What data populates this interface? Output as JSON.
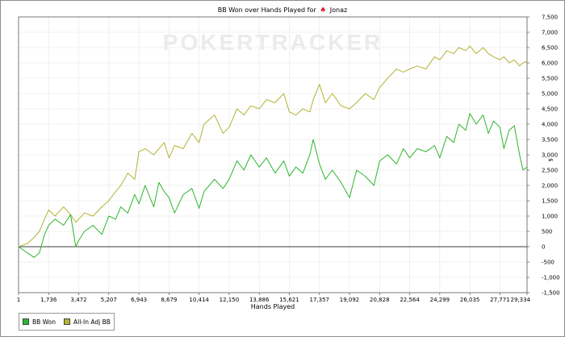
{
  "title": {
    "prefix": "BB Won over Hands Played for",
    "suit_glyph": "♠",
    "player": "Jonaz"
  },
  "watermark": "POKERTRACKER",
  "colors": {
    "bb_won": "#2db52d",
    "all_in_adj": "#b2b232",
    "zero_line": "#000000",
    "grid": "#e6e6e6"
  },
  "chart_data": {
    "type": "line",
    "xlabel": "Hands Played",
    "ylabel": "",
    "y_unit_label": "$",
    "xlim": [
      1,
      29334
    ],
    "ylim": [
      -1500,
      7500
    ],
    "x_ticks": [
      1,
      1736,
      3472,
      5207,
      6943,
      8679,
      10414,
      12150,
      13886,
      15621,
      17357,
      19092,
      20828,
      22564,
      24299,
      26035,
      27771,
      29334
    ],
    "x_tick_labels": [
      "1",
      "1,736",
      "3,472",
      "5,207",
      "6,943",
      "8,679",
      "10,414",
      "12,150",
      "13,886",
      "15,621",
      "17,357",
      "19,092",
      "20,828",
      "22,564",
      "24,299",
      "26,035",
      "27,771",
      "29,334"
    ],
    "y_ticks": [
      -1500,
      -1000,
      -500,
      0,
      500,
      1000,
      1500,
      2000,
      2500,
      3000,
      3500,
      4000,
      4500,
      5000,
      5500,
      6000,
      6500,
      7000,
      7500
    ],
    "y_tick_labels": [
      "-1,500",
      "-1,000",
      "-500",
      "0",
      "500",
      "1,000",
      "1,500",
      "2,000",
      "2,500",
      "3,000",
      "3,500",
      "4,000",
      "4,500",
      "5,000",
      "5,500",
      "6,000",
      "6,500",
      "7,000",
      "7,500"
    ],
    "grid": true,
    "legend_position": "bottom-left",
    "series": [
      {
        "name": "BB Won",
        "color": "#2db52d",
        "x": [
          1,
          500,
          900,
          1200,
          1500,
          1736,
          2100,
          2600,
          3000,
          3300,
          3472,
          3800,
          4300,
          4800,
          5207,
          5600,
          5900,
          6300,
          6700,
          6943,
          7300,
          7800,
          8100,
          8400,
          8679,
          9000,
          9500,
          10000,
          10414,
          10700,
          11300,
          11800,
          12150,
          12600,
          13000,
          13400,
          13886,
          14300,
          14800,
          15300,
          15621,
          16000,
          16400,
          16800,
          17000,
          17357,
          17700,
          18100,
          18600,
          19092,
          19500,
          20000,
          20500,
          20828,
          21300,
          21800,
          22200,
          22564,
          23000,
          23500,
          24000,
          24299,
          24700,
          25100,
          25400,
          25800,
          26035,
          26400,
          26800,
          27100,
          27400,
          27771,
          28000,
          28300,
          28600,
          28900,
          29100,
          29334
        ],
        "values": [
          0,
          -200,
          -350,
          -200,
          400,
          700,
          900,
          700,
          1050,
          0,
          200,
          500,
          700,
          400,
          1000,
          900,
          1300,
          1100,
          1700,
          1400,
          2000,
          1300,
          2100,
          1800,
          1600,
          1100,
          1700,
          1900,
          1250,
          1800,
          2200,
          1900,
          2200,
          2800,
          2500,
          3000,
          2600,
          2900,
          2400,
          2800,
          2300,
          2600,
          2400,
          3000,
          3500,
          2700,
          2200,
          2500,
          2100,
          1600,
          2500,
          2300,
          2000,
          2800,
          3000,
          2700,
          3200,
          2900,
          3200,
          3100,
          3300,
          2900,
          3600,
          3400,
          4000,
          3800,
          4350,
          4000,
          4300,
          3700,
          4100,
          3900,
          3200,
          3800,
          3950,
          3000,
          2500,
          2600
        ]
      },
      {
        "name": "All-In Adj BB",
        "color": "#b2b232",
        "x": [
          1,
          500,
          900,
          1200,
          1500,
          1736,
          2100,
          2600,
          3000,
          3300,
          3472,
          3800,
          4300,
          4800,
          5207,
          5600,
          5900,
          6300,
          6700,
          6943,
          7300,
          7800,
          8100,
          8400,
          8679,
          9000,
          9500,
          10000,
          10414,
          10700,
          11300,
          11800,
          12150,
          12600,
          13000,
          13400,
          13886,
          14300,
          14800,
          15300,
          15621,
          16000,
          16400,
          16800,
          17000,
          17357,
          17700,
          18100,
          18600,
          19092,
          19500,
          20000,
          20500,
          20828,
          21300,
          21800,
          22200,
          22564,
          23000,
          23500,
          24000,
          24299,
          24700,
          25100,
          25400,
          25800,
          26035,
          26400,
          26800,
          27100,
          27400,
          27771,
          28000,
          28300,
          28600,
          28900,
          29100,
          29334
        ],
        "values": [
          0,
          100,
          300,
          500,
          900,
          1200,
          1000,
          1300,
          1050,
          800,
          900,
          1100,
          1000,
          1300,
          1500,
          1800,
          2000,
          2400,
          2200,
          3100,
          3200,
          3000,
          3200,
          3400,
          2900,
          3300,
          3200,
          3700,
          3400,
          4000,
          4300,
          3700,
          3900,
          4500,
          4300,
          4600,
          4500,
          4800,
          4700,
          5000,
          4400,
          4300,
          4500,
          4400,
          4800,
          5300,
          4700,
          5000,
          4600,
          4500,
          4700,
          5000,
          4800,
          5200,
          5500,
          5800,
          5700,
          5800,
          5900,
          5800,
          6200,
          6100,
          6400,
          6300,
          6500,
          6400,
          6550,
          6300,
          6500,
          6300,
          6200,
          6100,
          6200,
          6000,
          6100,
          5900,
          6000,
          6050
        ]
      }
    ]
  }
}
